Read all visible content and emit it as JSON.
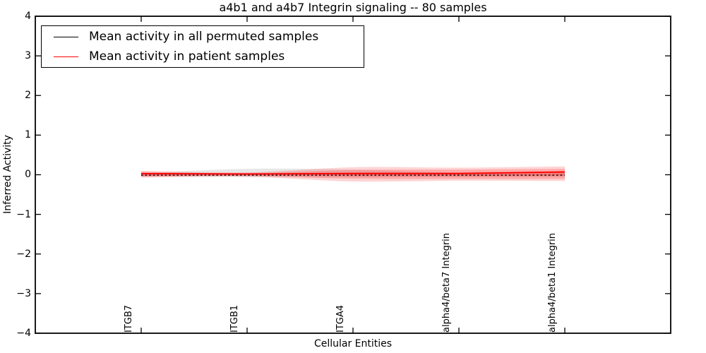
{
  "chart_data": {
    "type": "line",
    "title": "a4b1 and a4b7 Integrin signaling -- 80 samples",
    "xlabel": "Cellular Entities",
    "ylabel": "Inferred Activity",
    "xlim": [
      -1,
      5
    ],
    "ylim": [
      -4,
      4
    ],
    "grid": false,
    "legend_position": "upper left",
    "ytick_labels": [
      "4",
      "3",
      "2",
      "1",
      "0",
      "−1",
      "−2",
      "−3",
      "−4"
    ],
    "ytick_values": [
      4,
      3,
      2,
      1,
      0,
      -1,
      -2,
      -3,
      -4
    ],
    "categories": [
      "ITGB7",
      "ITGB1",
      "ITGA4",
      "alpha4/beta7 Integrin",
      "alpha4/beta1 Integrin"
    ],
    "x": [
      0,
      1,
      2,
      3,
      4
    ],
    "series": [
      {
        "name": "Mean activity in all permuted samples",
        "type": "line",
        "color": "#000000",
        "dash": "2.6,3",
        "width": 1.4,
        "values": [
          -0.01,
          -0.01,
          -0.01,
          -0.01,
          -0.01
        ]
      },
      {
        "name": "Mean activity in patient samples",
        "type": "line",
        "color": "#ff0000",
        "dash": "",
        "width": 1.8,
        "values": [
          0.03,
          0.02,
          0.03,
          0.03,
          0.07
        ]
      },
      {
        "name": "permuted-samples-spread-band",
        "type": "band",
        "color": "rgba(120,120,120,0.18)",
        "upper": [
          0.04,
          0.15,
          0.13,
          0.05,
          0.05
        ],
        "lower": [
          -0.05,
          -0.06,
          -0.07,
          -0.06,
          -0.06
        ]
      },
      {
        "name": "patient-spread-outer-band",
        "type": "band",
        "color": "rgba(255,40,40,0.20)",
        "upper": [
          0.1,
          0.06,
          0.19,
          0.18,
          0.21
        ],
        "lower": [
          -0.07,
          -0.05,
          -0.17,
          -0.15,
          -0.16
        ]
      },
      {
        "name": "patient-spread-mid-band",
        "type": "band",
        "color": "rgba(255,40,40,0.24)",
        "upper": [
          0.07,
          0.04,
          0.12,
          0.13,
          0.15
        ],
        "lower": [
          -0.05,
          -0.03,
          -0.1,
          -0.11,
          -0.11
        ]
      },
      {
        "name": "patient-spread-inner-band",
        "type": "band",
        "color": "rgba(255,40,40,0.30)",
        "upper": [
          0.05,
          0.03,
          0.06,
          0.06,
          0.09
        ],
        "lower": [
          -0.03,
          -0.02,
          -0.04,
          -0.04,
          -0.03
        ]
      }
    ]
  },
  "legend": {
    "items": [
      {
        "label": "Mean activity in all permuted samples",
        "color": "#000000"
      },
      {
        "label": "Mean activity in patient samples",
        "color": "#ff0000"
      }
    ]
  },
  "layout_colors": {
    "axis": "#000000",
    "background": "#ffffff"
  }
}
